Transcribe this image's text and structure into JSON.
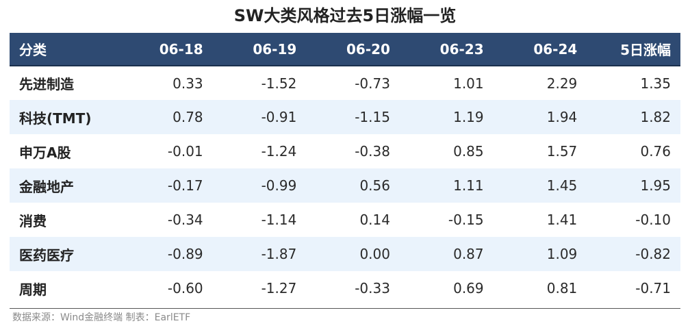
{
  "chart_data": {
    "type": "table",
    "title": "SW大类风格过去5日涨幅一览",
    "columns": [
      "分类",
      "06-18",
      "06-19",
      "06-20",
      "06-23",
      "06-24",
      "5日涨幅"
    ],
    "rows": [
      {
        "label": "先进制造",
        "values": [
          "0.33",
          "-1.52",
          "-0.73",
          "1.01",
          "2.29",
          "1.35"
        ]
      },
      {
        "label": "科技(TMT)",
        "values": [
          "0.78",
          "-0.91",
          "-1.15",
          "1.19",
          "1.94",
          "1.82"
        ]
      },
      {
        "label": "申万A股",
        "values": [
          "-0.01",
          "-1.24",
          "-0.38",
          "0.85",
          "1.57",
          "0.76"
        ]
      },
      {
        "label": "金融地产",
        "values": [
          "-0.17",
          "-0.99",
          "0.56",
          "1.11",
          "1.45",
          "1.95"
        ]
      },
      {
        "label": "消费",
        "values": [
          "-0.34",
          "-1.14",
          "0.14",
          "-0.15",
          "1.41",
          "-0.10"
        ]
      },
      {
        "label": "医药医疗",
        "values": [
          "-0.89",
          "-1.87",
          "0.00",
          "0.87",
          "1.09",
          "-0.82"
        ]
      },
      {
        "label": "周期",
        "values": [
          "-0.60",
          "-1.27",
          "-0.33",
          "0.69",
          "0.81",
          "-0.71"
        ]
      }
    ],
    "source": "数据来源：Wind金融终端 制表：EarlETF"
  },
  "colors": {
    "header_bg": "#2e4a72",
    "stripe_bg": "#eaf3fc"
  }
}
